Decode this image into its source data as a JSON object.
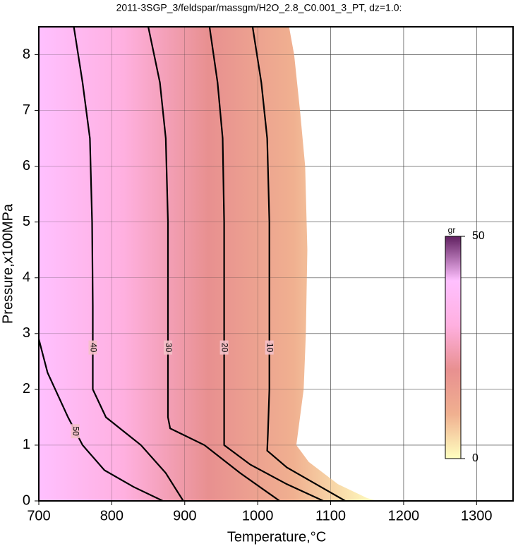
{
  "chart_data": {
    "type": "contour",
    "title": "2011-3SGP_3/feldspar/massgm/H2O_2.8_C0.001_3_PT, dz=1.0:",
    "x_label": "Temperature,°C",
    "y_label": "Pressure,x100MPa",
    "xlim": [
      700,
      1350
    ],
    "xticks": [
      700,
      800,
      900,
      1000,
      1100,
      1200,
      1300
    ],
    "ylim": [
      0,
      8.5
    ],
    "yticks": [
      0,
      1,
      2,
      3,
      4,
      5,
      6,
      7,
      8
    ],
    "grid": true,
    "colormap": [
      "#ffffc0",
      "#f0b090",
      "#e89090",
      "#ffb0e0",
      "#ffc0ff",
      "#602060"
    ],
    "field": {
      "x": [
        700,
        700,
        1043,
        1050,
        1058,
        1065,
        1068,
        1066,
        1063,
        1058,
        1053,
        1070,
        1110,
        1150,
        1165
      ],
      "y": [
        0,
        8.5,
        8.5,
        8,
        7,
        6,
        4.5,
        3,
        2,
        1.5,
        1,
        0.7,
        0.3,
        0.05,
        0
      ]
    },
    "contours": [
      {
        "level": 10,
        "x": [
          993,
          1005,
          1013,
          1016,
          1016,
          1016,
          1014,
          1013,
          1040,
          1080,
          1120
        ],
        "y": [
          8.5,
          7.5,
          6.5,
          5,
          3.5,
          2,
          1.2,
          0.9,
          0.6,
          0.3,
          0
        ]
      },
      {
        "level": 20,
        "x": [
          934,
          945,
          952,
          954,
          954,
          954,
          954,
          954,
          990,
          1040,
          1090
        ],
        "y": [
          8.5,
          7.5,
          6.5,
          5,
          3.5,
          2,
          1.3,
          1,
          0.65,
          0.3,
          0
        ]
      },
      {
        "level": 30,
        "x": [
          850,
          866,
          874,
          877,
          877,
          877,
          877,
          880,
          927,
          976,
          1030
        ],
        "y": [
          8.5,
          7.5,
          6.5,
          5,
          3.5,
          2,
          1.5,
          1.3,
          1,
          0.5,
          0
        ]
      },
      {
        "level": 40,
        "x": [
          748,
          760,
          770,
          773,
          774,
          774,
          792,
          840,
          874,
          898
        ],
        "y": [
          8.5,
          7.5,
          6.5,
          5,
          3.5,
          2,
          1.5,
          1,
          0.5,
          0
        ]
      },
      {
        "level": 50,
        "x": [
          700,
          712,
          726,
          740,
          760,
          790,
          830,
          870
        ],
        "y": [
          2.9,
          2.3,
          1.9,
          1.5,
          1.0,
          0.55,
          0.25,
          0
        ]
      }
    ],
    "colorbar": {
      "label": "gr",
      "lim": [
        0,
        50
      ],
      "ticks": [
        0,
        50
      ]
    }
  }
}
